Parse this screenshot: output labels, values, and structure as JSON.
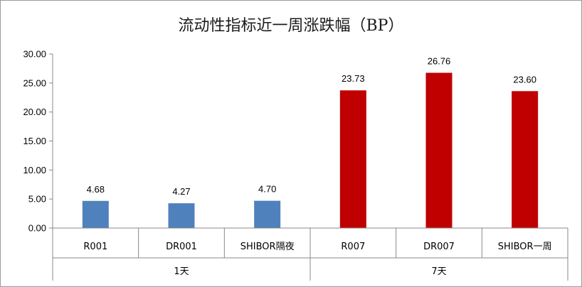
{
  "chart_data": {
    "type": "bar",
    "title": "流动性指标近一周涨跌幅（BP）",
    "xlabel": "",
    "ylabel": "",
    "ylim": [
      0,
      30
    ],
    "yticks": [
      "0.00",
      "5.00",
      "10.00",
      "15.00",
      "20.00",
      "25.00",
      "30.00"
    ],
    "grid": false,
    "legend": "none",
    "categories": [
      "R001",
      "DR001",
      "SHIBOR隔夜",
      "R007",
      "DR007",
      "SHIBOR一周"
    ],
    "groups": [
      {
        "label": "1天",
        "categories": [
          "R001",
          "DR001",
          "SHIBOR隔夜"
        ]
      },
      {
        "label": "7天",
        "categories": [
          "R007",
          "DR007",
          "SHIBOR一周"
        ]
      }
    ],
    "values": [
      4.68,
      4.27,
      4.7,
      23.73,
      26.76,
      23.6
    ],
    "data_labels": [
      "4.68",
      "4.27",
      "4.70",
      "23.73",
      "26.76",
      "23.60"
    ],
    "colors": [
      "#4F81BD",
      "#4F81BD",
      "#4F81BD",
      "#C00000",
      "#C00000",
      "#C00000"
    ]
  }
}
